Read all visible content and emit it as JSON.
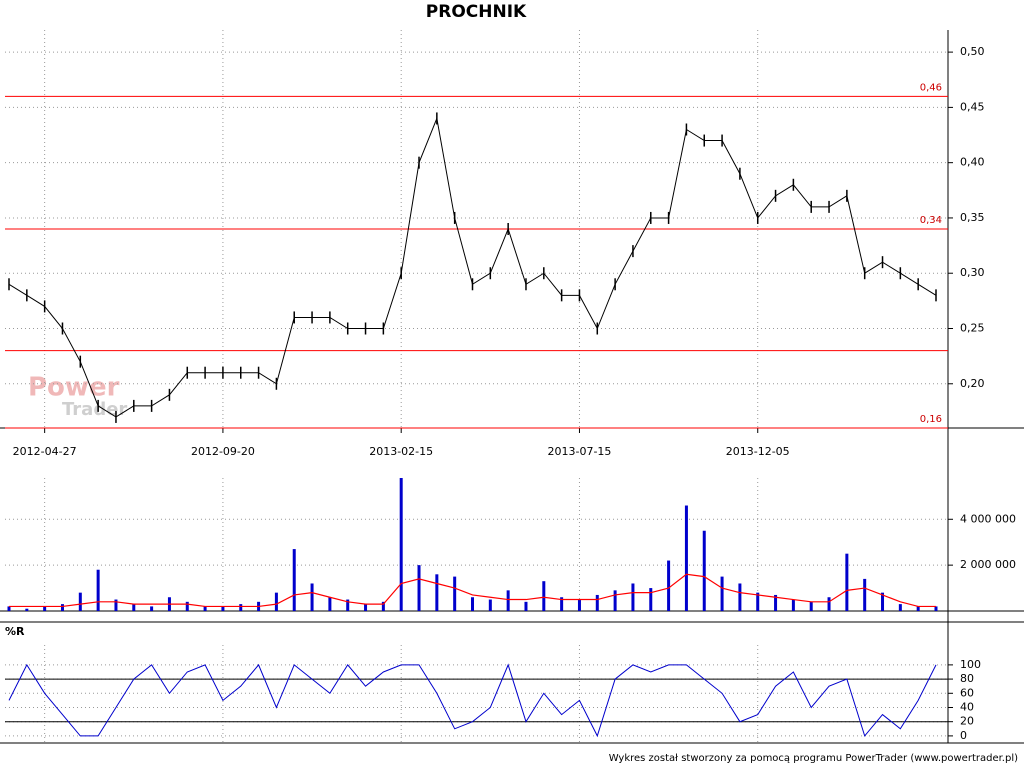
{
  "chart_data": [
    {
      "type": "price",
      "title": "PROCHNIK",
      "watermark": [
        "Power",
        "Trader"
      ],
      "categories": [
        null,
        null,
        "2012-04-27",
        null,
        null,
        null,
        null,
        null,
        null,
        null,
        null,
        null,
        "2012-09-20",
        null,
        null,
        null,
        null,
        null,
        null,
        null,
        null,
        null,
        "2013-02-15",
        null,
        null,
        null,
        null,
        null,
        null,
        null,
        null,
        null,
        "2013-07-15",
        null,
        null,
        null,
        null,
        null,
        null,
        null,
        null,
        null,
        "2013-12-05",
        null,
        null,
        null,
        null,
        null,
        null,
        null,
        null,
        null,
        null
      ],
      "series": [
        {
          "name": "close",
          "color": "#000000",
          "values": [
            0.29,
            0.28,
            0.27,
            0.25,
            0.22,
            0.18,
            0.17,
            0.18,
            0.18,
            0.19,
            0.21,
            0.21,
            0.21,
            0.21,
            0.21,
            0.2,
            0.26,
            0.26,
            0.26,
            0.25,
            0.25,
            0.25,
            0.3,
            0.4,
            0.44,
            0.35,
            0.29,
            0.3,
            0.34,
            0.29,
            0.3,
            0.28,
            0.28,
            0.25,
            0.29,
            0.32,
            0.35,
            0.35,
            0.43,
            0.42,
            0.42,
            0.39,
            0.35,
            0.37,
            0.38,
            0.36,
            0.36,
            0.37,
            0.3,
            0.31,
            0.3,
            0.29,
            0.28
          ]
        }
      ],
      "ylim": [
        0.16,
        0.52
      ],
      "yticks": [
        {
          "value": 0.2,
          "label": "0,20"
        },
        {
          "value": 0.25,
          "label": "0,25"
        },
        {
          "value": 0.3,
          "label": "0,30"
        },
        {
          "value": 0.35,
          "label": "0,35"
        },
        {
          "value": 0.4,
          "label": "0,40"
        },
        {
          "value": 0.45,
          "label": "0,45"
        },
        {
          "value": 0.5,
          "label": "0,50"
        }
      ],
      "levels": [
        {
          "value": 0.46,
          "label": "0,46"
        },
        {
          "value": 0.34,
          "label": "0,34"
        },
        {
          "value": 0.16,
          "label": "0,16"
        }
      ],
      "unlabeled_levels": [
        0.23
      ],
      "line_color": "#ff0000"
    },
    {
      "type": "bar",
      "series": [
        {
          "name": "volume",
          "color": "#0000cc",
          "values": [
            200000,
            100000,
            200000,
            300000,
            800000,
            1800000,
            500000,
            300000,
            200000,
            600000,
            400000,
            200000,
            200000,
            300000,
            400000,
            800000,
            2700000,
            1200000,
            600000,
            500000,
            300000,
            400000,
            5800000,
            2000000,
            1600000,
            1500000,
            600000,
            500000,
            900000,
            400000,
            1300000,
            600000,
            500000,
            700000,
            900000,
            1200000,
            1000000,
            2200000,
            4600000,
            3500000,
            1500000,
            1200000,
            800000,
            700000,
            500000,
            400000,
            600000,
            2500000,
            1400000,
            800000,
            300000,
            200000,
            200000
          ]
        },
        {
          "name": "average",
          "color": "#ff0000",
          "values": [
            200000,
            200000,
            200000,
            200000,
            300000,
            400000,
            400000,
            300000,
            300000,
            300000,
            300000,
            200000,
            200000,
            200000,
            200000,
            300000,
            700000,
            800000,
            600000,
            400000,
            300000,
            300000,
            1200000,
            1400000,
            1200000,
            1000000,
            700000,
            600000,
            500000,
            500000,
            600000,
            500000,
            500000,
            500000,
            700000,
            800000,
            800000,
            1000000,
            1600000,
            1500000,
            1000000,
            800000,
            700000,
            600000,
            500000,
            400000,
            400000,
            900000,
            1000000,
            700000,
            400000,
            200000,
            200000
          ]
        }
      ],
      "ylim": [
        0,
        5800000
      ],
      "yticks": [
        {
          "value": 2000000,
          "label": "2 000 000"
        },
        {
          "value": 4000000,
          "label": "4 000 000"
        }
      ]
    },
    {
      "type": "line",
      "title": "%R",
      "series": [
        {
          "name": "%R",
          "color": "#0000cc",
          "values": [
            50,
            100,
            60,
            30,
            0,
            0,
            40,
            80,
            100,
            60,
            90,
            100,
            50,
            70,
            100,
            40,
            100,
            80,
            60,
            100,
            70,
            90,
            100,
            100,
            60,
            10,
            20,
            40,
            100,
            20,
            60,
            30,
            50,
            0,
            80,
            100,
            90,
            100,
            100,
            80,
            60,
            20,
            30,
            70,
            90,
            40,
            70,
            80,
            0,
            30,
            10,
            50,
            100
          ]
        }
      ],
      "ylim": [
        -10,
        128
      ],
      "yticks": [
        0,
        20,
        40,
        60,
        80,
        100
      ],
      "levels": [
        20,
        80
      ]
    }
  ],
  "footer": "Wykres został stworzony za pomocą programu PowerTrader (www.powertrader.pl)"
}
